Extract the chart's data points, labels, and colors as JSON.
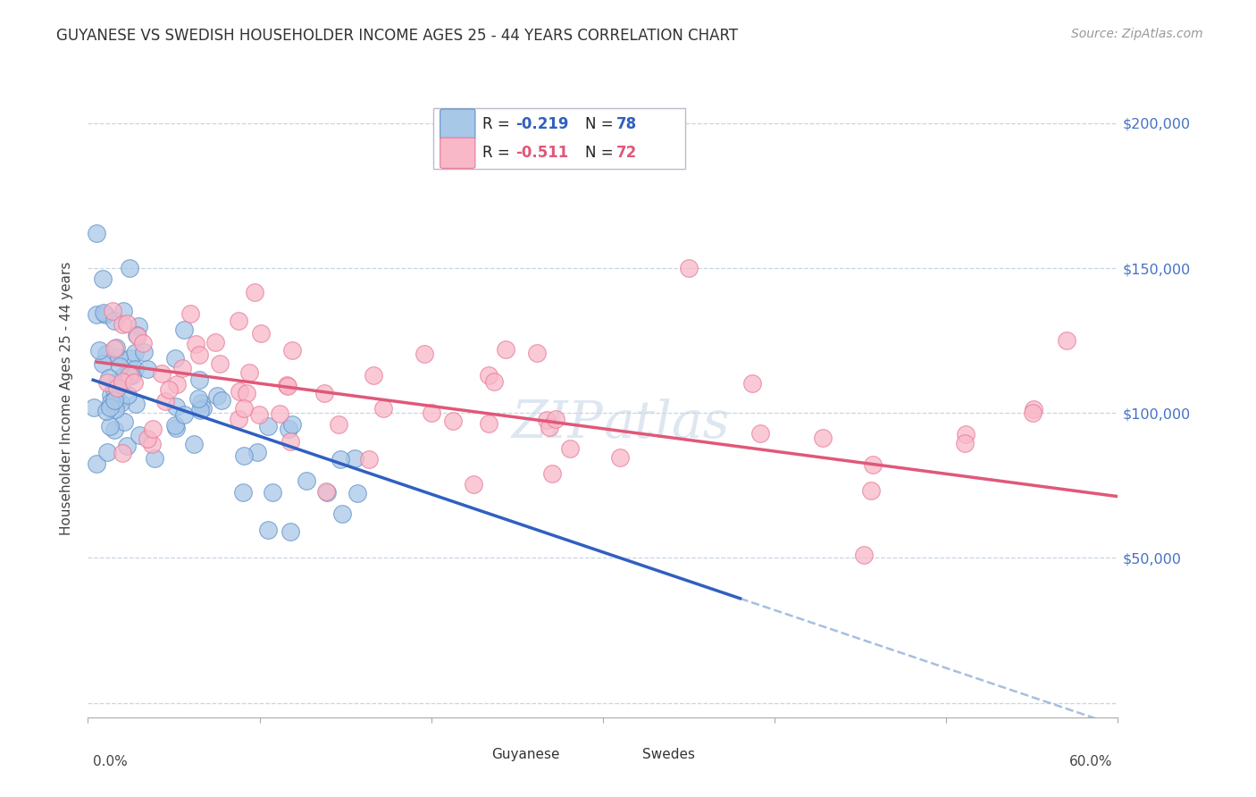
{
  "title": "GUYANESE VS SWEDISH HOUSEHOLDER INCOME AGES 25 - 44 YEARS CORRELATION CHART",
  "source": "Source: ZipAtlas.com",
  "ylabel": "Householder Income Ages 25 - 44 years",
  "xlim": [
    0.0,
    0.6
  ],
  "ylim": [
    -5000,
    215000
  ],
  "guyanese_color": "#a8c8e8",
  "guyanese_edge_color": "#6090c8",
  "swedes_color": "#f8b8c8",
  "swedes_edge_color": "#e87898",
  "guyanese_line_color": "#3060c0",
  "swedes_line_color": "#e05878",
  "dashed_line_color": "#90b0d8",
  "background_color": "#ffffff",
  "grid_color": "#c8d4e4",
  "guyanese_r": "-0.219",
  "guyanese_n": "78",
  "swedes_r": "-0.511",
  "swedes_n": "72",
  "ytick_color": "#4472c4",
  "watermark_color": "#c8d8e8"
}
